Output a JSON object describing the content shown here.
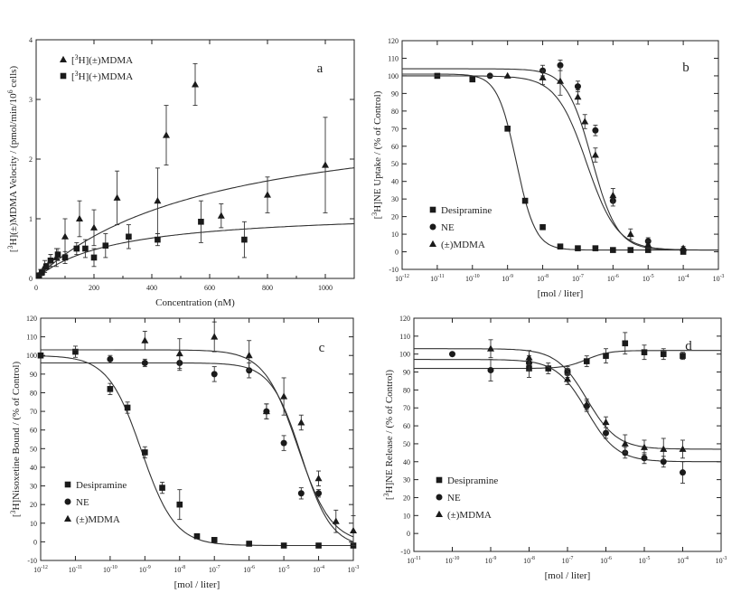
{
  "chart_data": [
    {
      "id": "a",
      "type": "scatter",
      "panel_label": "a",
      "xlabel": "Concentration (nM)",
      "ylabel": "[3H](±)MDMA Velocity / (pmol/min/10^6 cells)",
      "xlim": [
        0,
        1100
      ],
      "ylim": [
        0,
        4
      ],
      "xscale": "linear",
      "xticks": [
        0,
        200,
        400,
        600,
        800,
        1000
      ],
      "yticks": [
        0,
        1,
        2,
        3,
        4
      ],
      "legend_position": "top-left",
      "series": [
        {
          "name": "[3H](±)MDMA",
          "marker": "triangle",
          "x": [
            15,
            30,
            50,
            70,
            100,
            150,
            200,
            280,
            420,
            450,
            550,
            640,
            800,
            1000
          ],
          "y": [
            0.1,
            0.2,
            0.3,
            0.35,
            0.7,
            1.0,
            0.85,
            1.35,
            1.3,
            2.4,
            3.25,
            1.05,
            1.4,
            1.9
          ],
          "err": [
            0.05,
            0.1,
            0.1,
            0.15,
            0.3,
            0.3,
            0.3,
            0.45,
            0.55,
            0.5,
            0.35,
            0.2,
            0.3,
            0.8
          ],
          "fit": {
            "vmax": 2.9,
            "km": 620
          }
        },
        {
          "name": "[3H](+)MDMA",
          "marker": "square",
          "x": [
            10,
            20,
            35,
            50,
            75,
            100,
            140,
            170,
            200,
            240,
            320,
            420,
            570,
            720
          ],
          "y": [
            0.05,
            0.1,
            0.2,
            0.3,
            0.4,
            0.35,
            0.5,
            0.5,
            0.35,
            0.55,
            0.7,
            0.65,
            0.95,
            0.65
          ],
          "err": [
            0.02,
            0.05,
            0.05,
            0.1,
            0.1,
            0.1,
            0.1,
            0.15,
            0.15,
            0.2,
            0.2,
            0.1,
            0.35,
            0.3
          ],
          "fit": {
            "vmax": 1.15,
            "km": 280
          }
        }
      ]
    },
    {
      "id": "b",
      "type": "scatter",
      "panel_label": "b",
      "xlabel": "[mol / liter]",
      "ylabel": "[3H]NE Uptake / (% of Control)",
      "xlim": [
        -12,
        -3
      ],
      "ylim": [
        -10,
        120
      ],
      "xscale": "log",
      "xticks": [
        -12,
        -11,
        -10,
        -9,
        -8,
        -7,
        -6,
        -5,
        -4,
        -3
      ],
      "xtick_labels": [
        "10^-12",
        "10^-11",
        "10^-10",
        "10^-9",
        "10^-8",
        "10^-7",
        "10^-6",
        "10^-5",
        "10^-4",
        "10^-3"
      ],
      "yticks": [
        -10,
        0,
        10,
        20,
        30,
        40,
        50,
        60,
        70,
        80,
        90,
        100,
        110,
        120
      ],
      "legend_position": "bottom-left",
      "series": [
        {
          "name": "Desipramine",
          "marker": "square",
          "x": [
            -11,
            -10,
            -9,
            -8.5,
            -8,
            -7.5,
            -7,
            -6.5,
            -6,
            -5.5,
            -5,
            -4
          ],
          "y": [
            100,
            98,
            70,
            29,
            14,
            3,
            2,
            2,
            1,
            1,
            1,
            0
          ],
          "err": [
            0,
            0,
            0,
            0,
            0,
            0,
            0,
            0,
            0,
            0,
            0,
            0
          ],
          "fit": {
            "top": 101,
            "bottom": 1,
            "logec50": -8.75,
            "hill": 1.6
          }
        },
        {
          "name": "NE",
          "marker": "circle",
          "x": [
            -9.5,
            -8,
            -7.5,
            -7,
            -6.5,
            -6,
            -5,
            -4
          ],
          "y": [
            100,
            103,
            106,
            94,
            69,
            29,
            6,
            1
          ],
          "err": [
            0,
            3,
            3,
            3,
            3,
            3,
            2,
            1
          ],
          "fit": {
            "top": 104,
            "bottom": 1,
            "logec50": -6.6,
            "hill": 1.2
          }
        },
        {
          "name": "(±)MDMA",
          "marker": "triangle",
          "x": [
            -9,
            -8,
            -7.5,
            -7,
            -6.8,
            -6.5,
            -6,
            -5.5,
            -5,
            -4
          ],
          "y": [
            100,
            99,
            97,
            88,
            74,
            55,
            32,
            10,
            4,
            2
          ],
          "err": [
            0,
            4,
            8,
            4,
            4,
            4,
            4,
            3,
            2,
            1
          ],
          "fit": {
            "top": 100,
            "bottom": 1,
            "logec50": -6.75,
            "hill": 1.0
          }
        }
      ]
    },
    {
      "id": "c",
      "type": "scatter",
      "panel_label": "c",
      "xlabel": "[mol / liter]",
      "ylabel": "[3H]Nisoxetine Bound / (% of Control)",
      "xlim": [
        -12,
        -3
      ],
      "ylim": [
        -10,
        120
      ],
      "xscale": "log",
      "xticks": [
        -12,
        -11,
        -10,
        -9,
        -8,
        -7,
        -6,
        -5,
        -4,
        -3
      ],
      "xtick_labels": [
        "10^-12",
        "10^-11",
        "10^-10",
        "10^-9",
        "10^-8",
        "10^-7",
        "10^-6",
        "10^-5",
        "10^-4",
        "10^-3"
      ],
      "yticks": [
        -10,
        0,
        10,
        20,
        30,
        40,
        50,
        60,
        70,
        80,
        90,
        100,
        110,
        120
      ],
      "legend_position": "bottom-left",
      "series": [
        {
          "name": "Desipramine",
          "marker": "square",
          "x": [
            -12,
            -11,
            -10,
            -9.5,
            -9,
            -8.5,
            -8,
            -7.5,
            -7,
            -6,
            -5,
            -4,
            -3
          ],
          "y": [
            100,
            102,
            82,
            72,
            48,
            29,
            20,
            3,
            1,
            -1,
            -2,
            -2,
            -2
          ],
          "err": [
            0,
            3,
            3,
            3,
            3,
            3,
            8,
            0,
            1,
            1,
            1,
            1,
            1
          ],
          "fit": {
            "top": 100,
            "bottom": -2,
            "logec50": -9.1,
            "hill": 0.9
          }
        },
        {
          "name": "NE",
          "marker": "circle",
          "x": [
            -10,
            -9,
            -8,
            -7,
            -6,
            -5.5,
            -5,
            -4.5,
            -4
          ],
          "y": [
            98,
            96,
            96,
            90,
            92,
            70,
            53,
            26,
            26
          ],
          "err": [
            2,
            2,
            4,
            4,
            4,
            4,
            4,
            3,
            2
          ],
          "fit": {
            "top": 96,
            "bottom": -3,
            "logec50": -4.5,
            "hill": 1.0
          }
        },
        {
          "name": "(±)MDMA",
          "marker": "triangle",
          "x": [
            -9,
            -8,
            -7,
            -6,
            -5.5,
            -5,
            -4.5,
            -4,
            -3.5,
            -3
          ],
          "y": [
            108,
            101,
            110,
            100,
            70,
            78,
            64,
            34,
            11,
            6
          ],
          "err": [
            5,
            8,
            8,
            8,
            4,
            10,
            4,
            4,
            6,
            8
          ],
          "fit": {
            "top": 103,
            "bottom": -1,
            "logec50": -4.6,
            "hill": 0.9
          }
        }
      ]
    },
    {
      "id": "d",
      "type": "scatter",
      "panel_label": "d",
      "xlabel": "[mol / liter]",
      "ylabel": "[3H]NE Release / (% of Control)",
      "xlim": [
        -11,
        -3
      ],
      "ylim": [
        -10,
        120
      ],
      "xscale": "log",
      "xticks": [
        -11,
        -10,
        -9,
        -8,
        -7,
        -6,
        -5,
        -4,
        -3
      ],
      "xtick_labels": [
        "10^-11",
        "10^-10",
        "10^-9",
        "10^-8",
        "10^-7",
        "10^-6",
        "10^-5",
        "10^-4",
        "10^-3"
      ],
      "yticks": [
        -10,
        0,
        10,
        20,
        30,
        40,
        50,
        60,
        70,
        80,
        90,
        100,
        110,
        120
      ],
      "legend_position": "bottom-left",
      "series": [
        {
          "name": "Desipramine",
          "marker": "square",
          "x": [
            -8,
            -7.5,
            -7,
            -6.5,
            -6,
            -5.5,
            -5,
            -4.5,
            -4
          ],
          "y": [
            92,
            92,
            90,
            96,
            99,
            106,
            101,
            100,
            99
          ],
          "err": [
            5,
            3,
            2,
            3,
            4,
            6,
            4,
            3,
            2
          ],
          "fit": {
            "level": 92,
            "riseTo": 102,
            "logec50": -6.5,
            "hill": 1.5
          }
        },
        {
          "name": "NE",
          "marker": "circle",
          "x": [
            -10,
            -9,
            -8,
            -7,
            -6.5,
            -6,
            -5.5,
            -5,
            -4.5,
            -4
          ],
          "y": [
            100,
            91,
            95,
            90,
            71,
            56,
            45,
            42,
            40,
            34
          ],
          "err": [
            0,
            6,
            4,
            3,
            3,
            3,
            3,
            3,
            3,
            6
          ],
          "fit": {
            "top": 97,
            "bottom": 40,
            "logec50": -6.5,
            "hill": 1.1
          }
        },
        {
          "name": "(±)MDMA",
          "marker": "triangle",
          "x": [
            -9,
            -8,
            -7,
            -6.5,
            -6,
            -5.5,
            -5,
            -4.5,
            -4
          ],
          "y": [
            103,
            98,
            86,
            72,
            62,
            50,
            48,
            47,
            47
          ],
          "err": [
            5,
            4,
            3,
            3,
            3,
            5,
            4,
            6,
            5
          ],
          "fit": {
            "top": 103,
            "bottom": 47,
            "logec50": -6.5,
            "hill": 1.1
          }
        }
      ]
    }
  ]
}
